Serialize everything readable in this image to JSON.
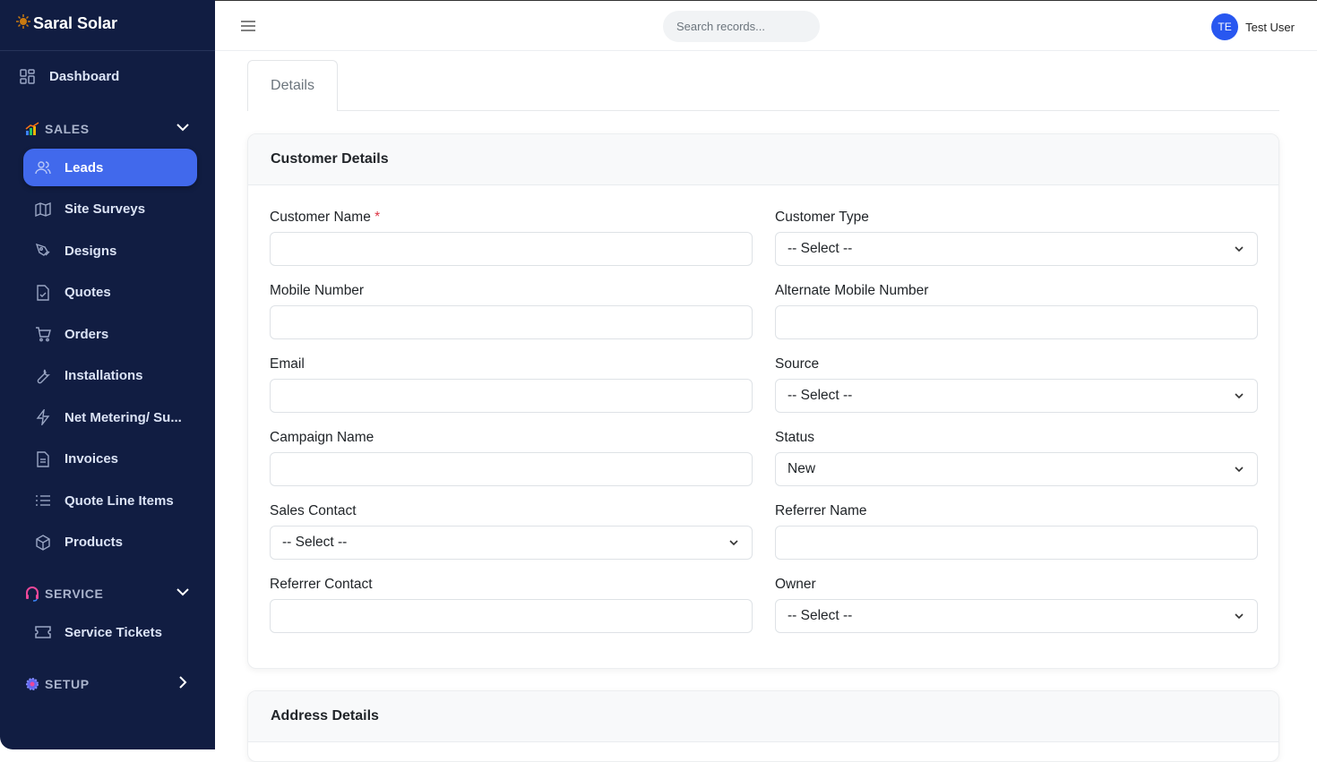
{
  "brand": {
    "name": "Saral Solar",
    "icon": "sun-icon"
  },
  "sidebar": {
    "dashboard": "Dashboard",
    "sections": [
      {
        "label": "SALES",
        "icon": "chart-icon",
        "expanded": true
      },
      {
        "label": "SERVICE",
        "icon": "headset-icon",
        "expanded": true
      },
      {
        "label": "SETUP",
        "icon": "gear-icon",
        "expanded": false
      }
    ],
    "sales_items": [
      {
        "label": "Leads",
        "icon": "users-icon",
        "active": true
      },
      {
        "label": "Site Surveys",
        "icon": "map-icon"
      },
      {
        "label": "Designs",
        "icon": "pen-tool-icon"
      },
      {
        "label": "Quotes",
        "icon": "file-icon"
      },
      {
        "label": "Orders",
        "icon": "cart-icon"
      },
      {
        "label": "Installations",
        "icon": "wrench-icon"
      },
      {
        "label": "Net Metering/ Su...",
        "icon": "bolt-icon"
      },
      {
        "label": "Invoices",
        "icon": "file-text-icon"
      },
      {
        "label": "Quote Line Items",
        "icon": "list-icon"
      },
      {
        "label": "Products",
        "icon": "box-icon"
      }
    ],
    "service_items": [
      {
        "label": "Service Tickets",
        "icon": "ticket-icon"
      }
    ]
  },
  "header": {
    "search_placeholder": "Search records...",
    "user_initials": "TE",
    "user_name": "Test User"
  },
  "tabs": [
    {
      "label": "Details",
      "active": true
    }
  ],
  "customer_details": {
    "title": "Customer Details",
    "fields": [
      {
        "label": "Customer Name",
        "required": "*",
        "value": "",
        "type": "text"
      },
      {
        "label": "Customer Type",
        "value": "-- Select --",
        "type": "select"
      },
      {
        "label": "Mobile Number",
        "value": "",
        "type": "text"
      },
      {
        "label": "Alternate Mobile Number",
        "value": "",
        "type": "text"
      },
      {
        "label": "Email",
        "value": "",
        "type": "text"
      },
      {
        "label": "Source",
        "value": "-- Select --",
        "type": "select"
      },
      {
        "label": "Campaign Name",
        "value": "",
        "type": "text"
      },
      {
        "label": "Status",
        "value": "New",
        "type": "select"
      },
      {
        "label": "Sales Contact",
        "value": "-- Select --",
        "type": "select"
      },
      {
        "label": "Referrer Name",
        "value": "",
        "type": "text"
      },
      {
        "label": "Referrer Contact",
        "value": "",
        "type": "text"
      },
      {
        "label": "Owner",
        "value": "-- Select --",
        "type": "select"
      }
    ]
  },
  "address_details": {
    "title": "Address Details"
  }
}
